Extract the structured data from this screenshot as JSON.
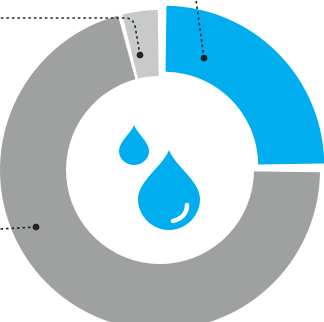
{
  "chart_data": {
    "type": "pie",
    "style": "donut",
    "slices": [
      {
        "value": 25,
        "color": "#00AEEF"
      },
      {
        "value": 71,
        "color": "#9FA1A1"
      },
      {
        "value": 4,
        "color": "#C8C9C9"
      }
    ],
    "legend": "none",
    "center_icon": "water-drops-icon"
  },
  "colors": {
    "accent": "#00AEEF",
    "grey_main": "#9FA1A1",
    "grey_light": "#C8C9C9",
    "leader_line": "#222222"
  }
}
